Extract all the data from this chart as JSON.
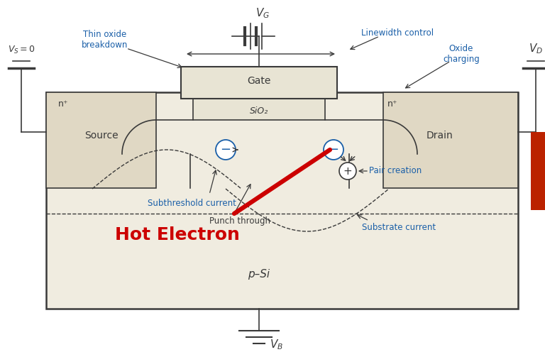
{
  "bg_color": "#ffffff",
  "body_color": "#f0ece0",
  "gate_color": "#e8e4d4",
  "oxide_color": "#e8e4d4",
  "region_color": "#e0d8c4",
  "line_color": "#3a3a3a",
  "blue_color": "#1a5fa8",
  "red_color": "#cc0000",
  "hot_electron_text": "Hot Electron",
  "gate_label": "Gate",
  "sio2_label": "SiO₂",
  "source_label": "Source",
  "drain_label": "Drain",
  "nplus_source": "n⁺",
  "nplus_drain": "n⁺",
  "psi_label": "p–Si",
  "thin_oxide": "Thin oxide\nbreakdown",
  "linewidth_ctrl": "Linewidth control",
  "oxide_charging": "Oxide\ncharging",
  "subthreshold": "Subthreshold current",
  "punch_through": "Punch through",
  "pair_creation": "Pair creation",
  "substrate_current": "Substrate current"
}
